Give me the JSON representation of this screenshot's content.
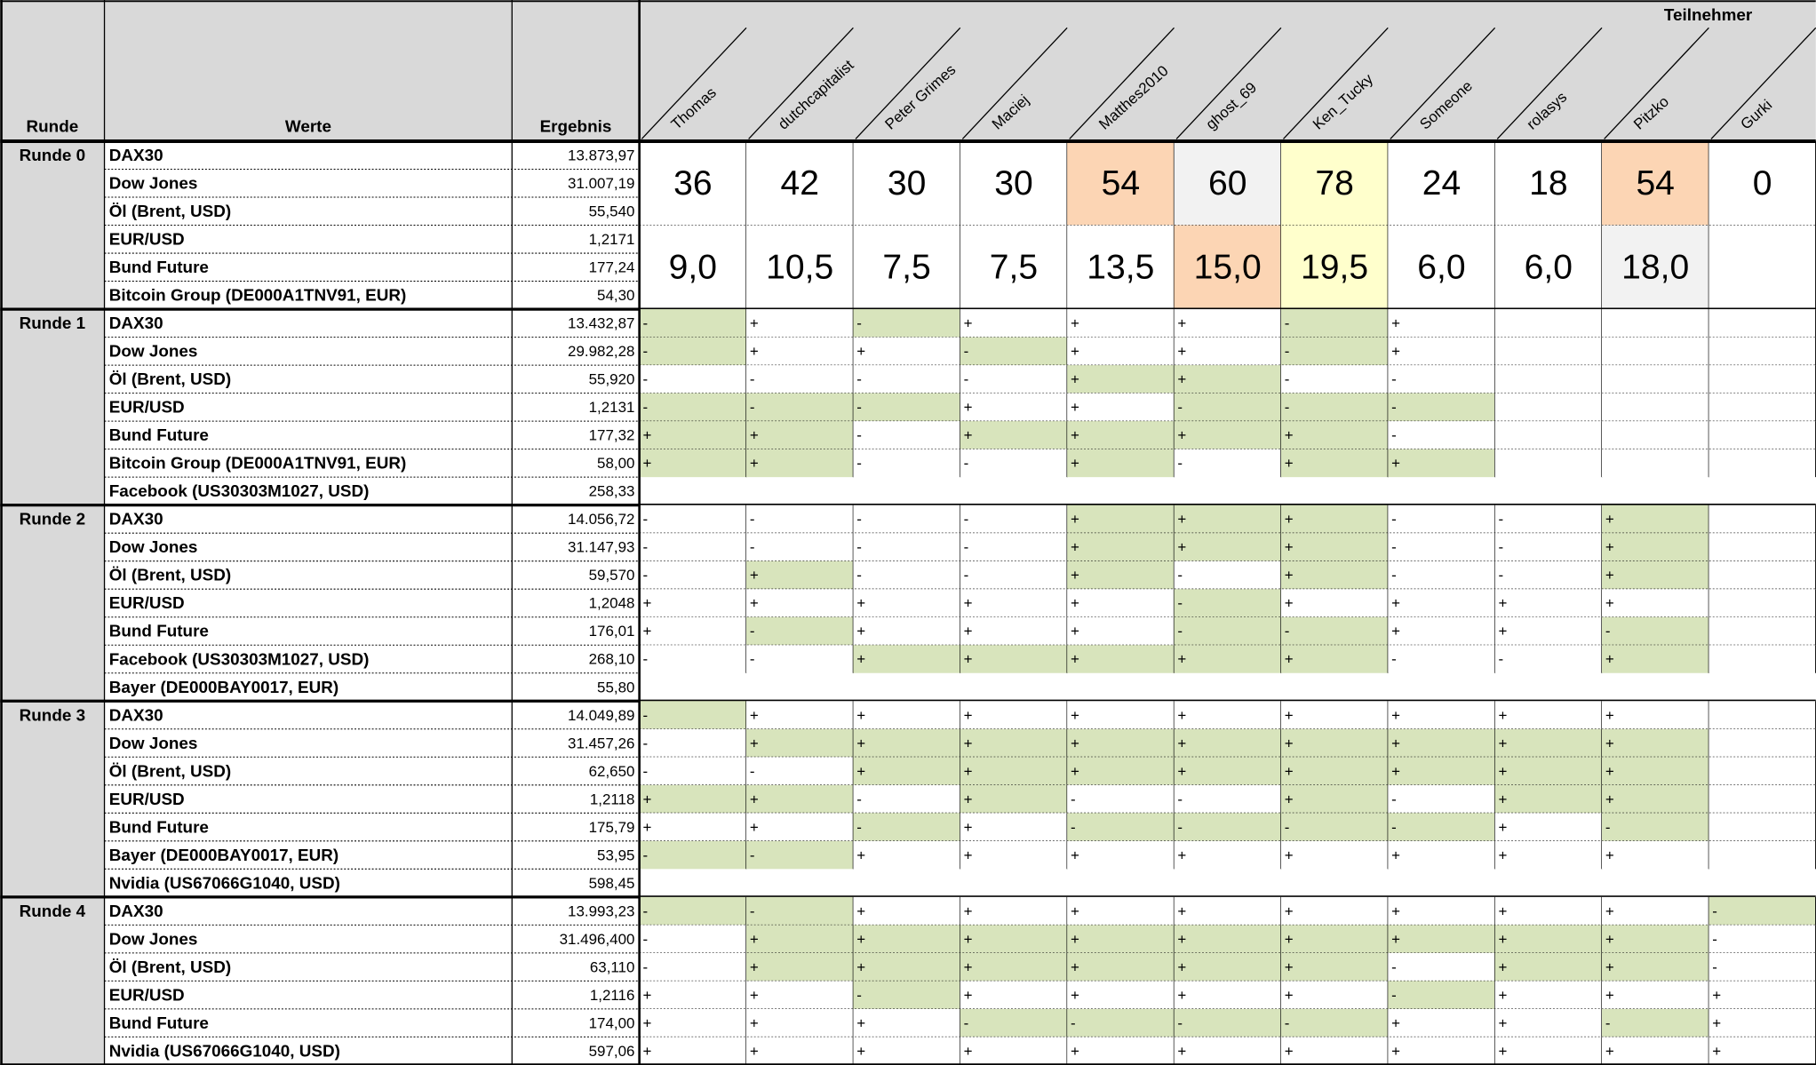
{
  "header": {
    "runde": "Runde",
    "werte": "Werte",
    "ergebnis": "Ergebnis",
    "teilnehmer": "Teilnehmer"
  },
  "participants": [
    "Thomas",
    "dutchcapitalist",
    "Peter Grimes",
    "Maciej",
    "Matthes2010",
    "ghost_69",
    "Ken_Tucky",
    "Someone",
    "rolasys",
    "Pitzko",
    "Gurki"
  ],
  "colors": {
    "header": "#d9d9d9",
    "hit": "#d8e4bc"
  },
  "rounds": [
    {
      "label": "Runde 0",
      "rows": [
        {
          "name": "DAX30",
          "result": "13.873,97"
        },
        {
          "name": "Dow Jones",
          "result": "31.007,19"
        },
        {
          "name": "Öl (Brent, USD)",
          "result": "55,540"
        },
        {
          "name": "EUR/USD",
          "result": "1,2171"
        },
        {
          "name": "Bund Future",
          "result": "177,24"
        },
        {
          "name": "Bitcoin Group (DE000A1TNV91, EUR)",
          "result": "54,30"
        }
      ],
      "scores": [
        {
          "values": [
            "36",
            "42",
            "30",
            "30",
            "54",
            "60",
            "78",
            "24",
            "18",
            "54",
            "0"
          ],
          "colors": [
            null,
            null,
            null,
            null,
            "#fcd5b4",
            "#f2f2f2",
            "#ffffcc",
            null,
            null,
            "#fcd5b4",
            null
          ]
        },
        {
          "values": [
            "9,0",
            "10,5",
            "7,5",
            "7,5",
            "13,5",
            "15,0",
            "19,5",
            "6,0",
            "6,0",
            "18,0",
            null
          ],
          "colors": [
            null,
            null,
            null,
            null,
            null,
            "#fcd5b4",
            "#ffffcc",
            null,
            null,
            "#f2f2f2",
            null
          ]
        }
      ]
    },
    {
      "label": "Runde 1",
      "rows": [
        {
          "name": "DAX30",
          "result": "13.432,87",
          "marks": [
            "-",
            "+",
            "-",
            "+",
            "+",
            "+",
            "-",
            "+",
            null,
            null,
            null
          ],
          "green": [
            true,
            false,
            true,
            false,
            false,
            false,
            true,
            false,
            false,
            false,
            false
          ]
        },
        {
          "name": "Dow Jones",
          "result": "29.982,28",
          "marks": [
            "-",
            "+",
            "+",
            "-",
            "+",
            "+",
            "-",
            "+",
            null,
            null,
            null
          ],
          "green": [
            true,
            false,
            false,
            true,
            false,
            false,
            true,
            false,
            false,
            false,
            false
          ]
        },
        {
          "name": "Öl (Brent, USD)",
          "result": "55,920",
          "marks": [
            "-",
            "-",
            "-",
            "-",
            "+",
            "+",
            "-",
            "-",
            null,
            null,
            null
          ],
          "green": [
            false,
            false,
            false,
            false,
            true,
            true,
            false,
            false,
            false,
            false,
            false
          ]
        },
        {
          "name": "EUR/USD",
          "result": "1,2131",
          "marks": [
            "-",
            "-",
            "-",
            "+",
            "+",
            "-",
            "-",
            "-",
            null,
            null,
            null
          ],
          "green": [
            true,
            true,
            true,
            false,
            false,
            true,
            true,
            true,
            false,
            false,
            false
          ]
        },
        {
          "name": "Bund Future",
          "result": "177,32",
          "marks": [
            "+",
            "+",
            "-",
            "+",
            "+",
            "+",
            "+",
            "-",
            null,
            null,
            null
          ],
          "green": [
            true,
            true,
            false,
            true,
            true,
            true,
            true,
            false,
            false,
            false,
            false
          ]
        },
        {
          "name": "Bitcoin Group (DE000A1TNV91, EUR)",
          "result": "58,00",
          "marks": [
            "+",
            "+",
            "-",
            "-",
            "+",
            "-",
            "+",
            "+",
            null,
            null,
            null
          ],
          "green": [
            true,
            true,
            false,
            false,
            true,
            false,
            true,
            true,
            false,
            false,
            false
          ]
        },
        {
          "name": "Facebook (US30303M1027, USD)",
          "result": "258,33"
        }
      ]
    },
    {
      "label": "Runde 2",
      "rows": [
        {
          "name": "DAX30",
          "result": "14.056,72",
          "marks": [
            "-",
            "-",
            "-",
            "-",
            "+",
            "+",
            "+",
            "-",
            "-",
            "+",
            null
          ],
          "green": [
            false,
            false,
            false,
            false,
            true,
            true,
            true,
            false,
            false,
            true,
            false
          ]
        },
        {
          "name": "Dow Jones",
          "result": "31.147,93",
          "marks": [
            "-",
            "-",
            "-",
            "-",
            "+",
            "+",
            "+",
            "-",
            "-",
            "+",
            null
          ],
          "green": [
            false,
            false,
            false,
            false,
            true,
            true,
            true,
            false,
            false,
            true,
            false
          ]
        },
        {
          "name": "Öl (Brent, USD)",
          "result": "59,570",
          "marks": [
            "-",
            "+",
            "-",
            "-",
            "+",
            "-",
            "+",
            "-",
            "-",
            "+",
            null
          ],
          "green": [
            false,
            true,
            false,
            false,
            true,
            false,
            true,
            false,
            false,
            true,
            false
          ]
        },
        {
          "name": "EUR/USD",
          "result": "1,2048",
          "marks": [
            "+",
            "+",
            "+",
            "+",
            "+",
            "-",
            "+",
            "+",
            "+",
            "+",
            null
          ],
          "green": [
            false,
            false,
            false,
            false,
            false,
            true,
            false,
            false,
            false,
            false,
            false
          ]
        },
        {
          "name": "Bund Future",
          "result": "176,01",
          "marks": [
            "+",
            "-",
            "+",
            "+",
            "+",
            "-",
            "-",
            "+",
            "+",
            "-",
            null
          ],
          "green": [
            false,
            true,
            false,
            false,
            false,
            true,
            true,
            false,
            false,
            true,
            false
          ]
        },
        {
          "name": "Facebook (US30303M1027, USD)",
          "result": "268,10",
          "marks": [
            "-",
            "-",
            "+",
            "+",
            "+",
            "+",
            "+",
            "-",
            "-",
            "+",
            null
          ],
          "green": [
            false,
            false,
            true,
            true,
            true,
            true,
            true,
            false,
            false,
            true,
            false
          ]
        },
        {
          "name": "Bayer (DE000BAY0017, EUR)",
          "result": "55,80"
        }
      ]
    },
    {
      "label": "Runde 3",
      "rows": [
        {
          "name": "DAX30",
          "result": "14.049,89",
          "marks": [
            "-",
            "+",
            "+",
            "+",
            "+",
            "+",
            "+",
            "+",
            "+",
            "+",
            null
          ],
          "green": [
            true,
            false,
            false,
            false,
            false,
            false,
            false,
            false,
            false,
            false,
            false
          ]
        },
        {
          "name": "Dow Jones",
          "result": "31.457,26",
          "marks": [
            "-",
            "+",
            "+",
            "+",
            "+",
            "+",
            "+",
            "+",
            "+",
            "+",
            null
          ],
          "green": [
            false,
            true,
            true,
            true,
            true,
            true,
            true,
            true,
            true,
            true,
            false
          ]
        },
        {
          "name": "Öl (Brent, USD)",
          "result": "62,650",
          "marks": [
            "-",
            "-",
            "+",
            "+",
            "+",
            "+",
            "+",
            "+",
            "+",
            "+",
            null
          ],
          "green": [
            false,
            false,
            true,
            true,
            true,
            true,
            true,
            true,
            true,
            true,
            false
          ]
        },
        {
          "name": "EUR/USD",
          "result": "1,2118",
          "marks": [
            "+",
            "+",
            "-",
            "+",
            "-",
            "-",
            "+",
            "-",
            "+",
            "+",
            null
          ],
          "green": [
            true,
            true,
            false,
            true,
            false,
            false,
            true,
            false,
            true,
            true,
            false
          ]
        },
        {
          "name": "Bund Future",
          "result": "175,79",
          "marks": [
            "+",
            "+",
            "-",
            "+",
            "-",
            "-",
            "-",
            "-",
            "+",
            "-",
            null
          ],
          "green": [
            false,
            false,
            true,
            false,
            true,
            true,
            true,
            true,
            false,
            true,
            false
          ]
        },
        {
          "name": "Bayer (DE000BAY0017, EUR)",
          "result": "53,95",
          "marks": [
            "-",
            "-",
            "+",
            "+",
            "+",
            "+",
            "+",
            "+",
            "+",
            "+",
            null
          ],
          "green": [
            true,
            true,
            false,
            false,
            false,
            false,
            false,
            false,
            false,
            false,
            false
          ]
        },
        {
          "name": "Nvidia (US67066G1040, USD)",
          "result": "598,45"
        }
      ]
    },
    {
      "label": "Runde 4",
      "rows": [
        {
          "name": "DAX30",
          "result": "13.993,23",
          "marks": [
            "-",
            "-",
            "+",
            "+",
            "+",
            "+",
            "+",
            "+",
            "+",
            "+",
            "-"
          ],
          "green": [
            true,
            true,
            false,
            false,
            false,
            false,
            false,
            false,
            false,
            false,
            true
          ]
        },
        {
          "name": "Dow Jones",
          "result": "31.496,400",
          "marks": [
            "-",
            "+",
            "+",
            "+",
            "+",
            "+",
            "+",
            "+",
            "+",
            "+",
            "-"
          ],
          "green": [
            false,
            true,
            true,
            true,
            true,
            true,
            true,
            true,
            true,
            true,
            false
          ]
        },
        {
          "name": "Öl (Brent, USD)",
          "result": "63,110",
          "marks": [
            "-",
            "+",
            "+",
            "+",
            "+",
            "+",
            "+",
            "-",
            "+",
            "+",
            "-"
          ],
          "green": [
            false,
            true,
            true,
            true,
            true,
            true,
            true,
            false,
            true,
            true,
            false
          ]
        },
        {
          "name": "EUR/USD",
          "result": "1,2116",
          "marks": [
            "+",
            "+",
            "-",
            "+",
            "+",
            "+",
            "+",
            "-",
            "+",
            "+",
            "+"
          ],
          "green": [
            false,
            false,
            true,
            false,
            false,
            false,
            false,
            true,
            false,
            false,
            false
          ]
        },
        {
          "name": "Bund Future",
          "result": "174,00",
          "marks": [
            "+",
            "+",
            "+",
            "-",
            "-",
            "-",
            "-",
            "+",
            "+",
            "-",
            "+"
          ],
          "green": [
            false,
            false,
            false,
            true,
            true,
            true,
            true,
            false,
            false,
            true,
            false
          ]
        },
        {
          "name": "Nvidia (US67066G1040, USD)",
          "result": "597,06",
          "marks": [
            "+",
            "+",
            "+",
            "+",
            "+",
            "+",
            "+",
            "+",
            "+",
            "+",
            "+"
          ],
          "green": [
            false,
            false,
            false,
            false,
            false,
            false,
            false,
            false,
            false,
            false,
            false
          ]
        }
      ]
    }
  ]
}
